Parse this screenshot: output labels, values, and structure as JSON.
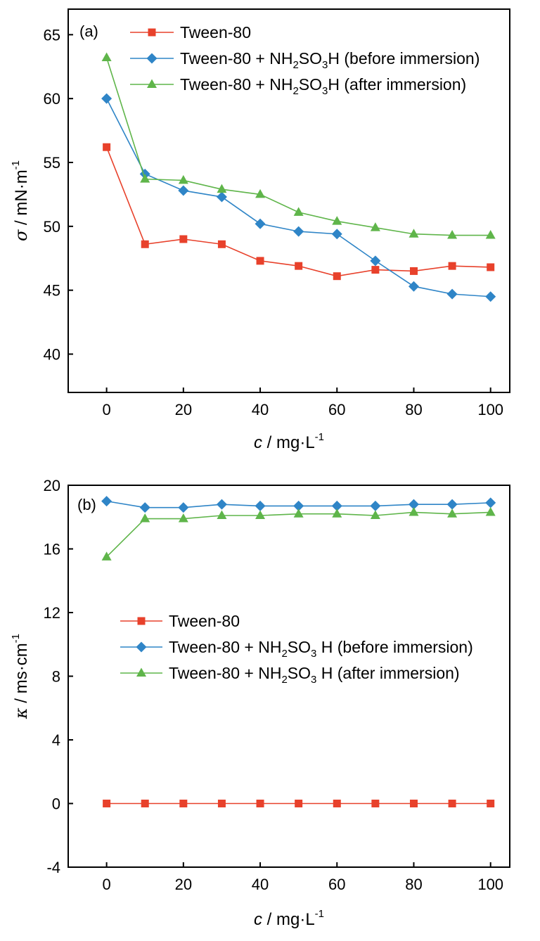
{
  "chart_data": [
    {
      "type": "line",
      "panel_label": "(a)",
      "xlabel": {
        "symbol": "c",
        "unit": "mg·L",
        "exp": "-1"
      },
      "ylabel": {
        "symbol": "σ",
        "unit": "mN·m",
        "exp": "-1"
      },
      "xlim": [
        -10,
        105
      ],
      "ylim": [
        37,
        67
      ],
      "xticks": [
        "0",
        "20",
        "40",
        "60",
        "80",
        "100"
      ],
      "yticks": [
        "40",
        "45",
        "50",
        "55",
        "60",
        "65"
      ],
      "legend_position": "top",
      "x": [
        0,
        10,
        20,
        30,
        40,
        50,
        60,
        70,
        80,
        90,
        100
      ],
      "series": [
        {
          "label": {
            "before": "Tween-80",
            "sub1": "",
            "mid": "",
            "sub2": "",
            "after": ""
          },
          "color": "#e8412b",
          "marker": "square",
          "values": [
            56.2,
            48.6,
            49.0,
            48.6,
            47.3,
            46.9,
            46.1,
            46.6,
            46.5,
            46.9,
            46.8
          ]
        },
        {
          "label": {
            "before": "Tween-80 + NH",
            "sub1": "2",
            "mid": "SO",
            "sub2": "3",
            "after": "H (before immersion)"
          },
          "color": "#2f85c7",
          "marker": "diamond",
          "values": [
            60.0,
            54.1,
            52.8,
            52.3,
            50.2,
            49.6,
            49.4,
            47.3,
            45.3,
            44.7,
            44.5
          ]
        },
        {
          "label": {
            "before": "Tween-80 + NH",
            "sub1": "2",
            "mid": "SO",
            "sub2": "3",
            "after": "H (after immersion)"
          },
          "color": "#5fb54a",
          "marker": "triangle",
          "values": [
            63.2,
            53.7,
            53.6,
            52.9,
            52.5,
            51.1,
            50.4,
            49.9,
            49.4,
            49.3,
            49.3
          ]
        }
      ]
    },
    {
      "type": "line",
      "panel_label": "(b)",
      "xlabel": {
        "symbol": "c",
        "unit": "mg·L",
        "exp": "-1"
      },
      "ylabel": {
        "symbol": "κ",
        "unit": "ms·cm",
        "exp": "-1"
      },
      "xlim": [
        -10,
        105
      ],
      "ylim": [
        -4,
        20
      ],
      "xticks": [
        "0",
        "20",
        "40",
        "60",
        "80",
        "100"
      ],
      "yticks": [
        "-4",
        "0",
        "4",
        "8",
        "12",
        "16",
        "20"
      ],
      "legend_position": "center-left",
      "x": [
        0,
        10,
        20,
        30,
        40,
        50,
        60,
        70,
        80,
        90,
        100
      ],
      "series": [
        {
          "label": {
            "before": "Tween-80",
            "sub1": "",
            "mid": "",
            "sub2": "",
            "after": ""
          },
          "color": "#e8412b",
          "marker": "square",
          "values": [
            0,
            0,
            0,
            0,
            0,
            0,
            0,
            0,
            0,
            0,
            0
          ]
        },
        {
          "label": {
            "before": "Tween-80 + NH",
            "sub1": "2",
            "mid": "SO",
            "sub2": "3",
            "after": " H (before immersion)"
          },
          "color": "#2f85c7",
          "marker": "diamond",
          "values": [
            19.0,
            18.6,
            18.6,
            18.8,
            18.7,
            18.7,
            18.7,
            18.7,
            18.8,
            18.8,
            18.9
          ]
        },
        {
          "label": {
            "before": "Tween-80 + NH",
            "sub1": "2",
            "mid": "SO",
            "sub2": "3",
            "after": " H (after immersion)"
          },
          "color": "#5fb54a",
          "marker": "triangle",
          "values": [
            15.5,
            17.9,
            17.9,
            18.1,
            18.1,
            18.2,
            18.2,
            18.1,
            18.3,
            18.2,
            18.3
          ]
        }
      ]
    }
  ]
}
